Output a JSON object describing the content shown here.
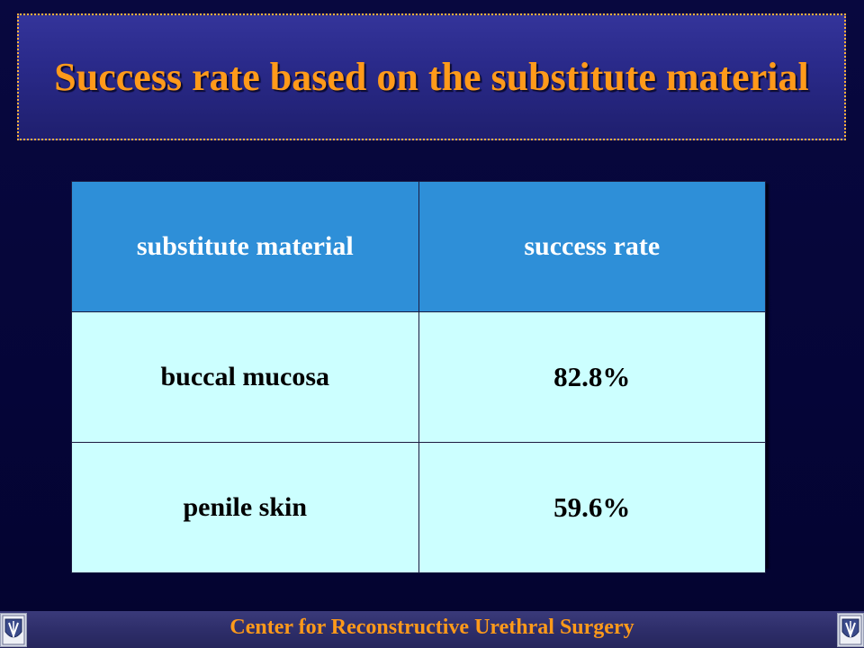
{
  "slide": {
    "title": "Success rate based on the substitute material",
    "footer": "Center for Reconstructive Urethral Surgery"
  },
  "table": {
    "headers": [
      "substitute material",
      "success rate"
    ],
    "rows": [
      [
        "buccal mucosa",
        "82.8%"
      ],
      [
        "penile skin",
        "59.6%"
      ]
    ]
  },
  "colors": {
    "background": "#05053a",
    "title_text": "#ff9a1a",
    "title_box": "#2a2a8a",
    "header_cell": "#2e8fd8",
    "body_cell": "#ccffff"
  },
  "icons": {
    "logo": "crest-logo-icon"
  }
}
